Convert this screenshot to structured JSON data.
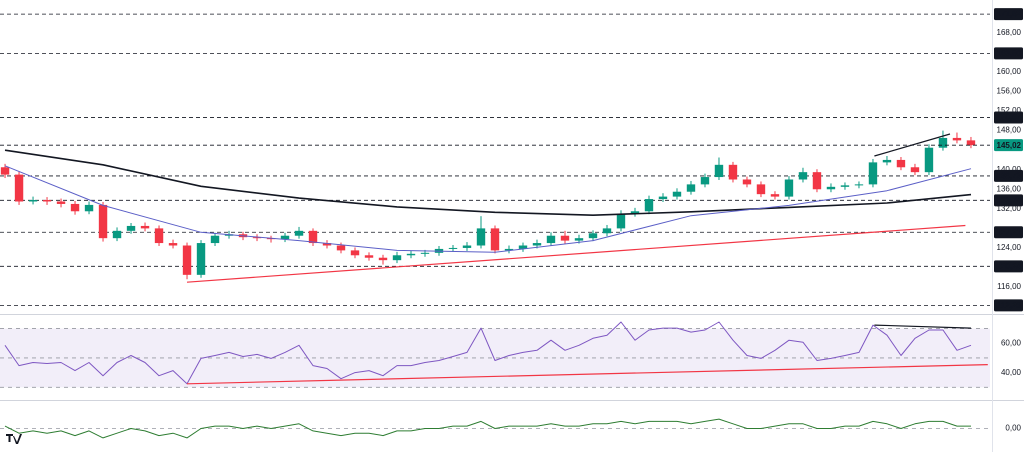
{
  "chart_data": [
    {
      "type": "candlestick",
      "xlim": [
        -0.36,
        70.36
      ],
      "ylim": [
        110.9,
        174.3
      ],
      "yticks": [
        {
          "value": 168,
          "label": "168,00"
        },
        {
          "value": 160,
          "label": "160,00"
        },
        {
          "value": 156,
          "label": "156,00"
        },
        {
          "value": 152,
          "label": "152,00"
        },
        {
          "value": 148,
          "label": "148,00"
        },
        {
          "value": 140,
          "label": "140,00"
        },
        {
          "value": 136,
          "label": "136,00"
        },
        {
          "value": 132,
          "label": "132,00"
        },
        {
          "value": 124,
          "label": "124,00"
        },
        {
          "value": 116,
          "label": "116,00"
        }
      ],
      "levels": [
        {
          "value": 171.82,
          "label": "171,82"
        },
        {
          "value": 163.8,
          "label": "163,80"
        },
        {
          "value": 150.67,
          "label": "150,67"
        },
        {
          "value": 138.73,
          "label": "138,73"
        },
        {
          "value": 133.74,
          "label": "133,74"
        },
        {
          "value": 127.21,
          "label": "127,21"
        },
        {
          "value": 120.24,
          "label": "120,24"
        },
        {
          "value": 112.26,
          "label": "112,26"
        }
      ],
      "level_color": "#131722",
      "last_price": {
        "value": 145.02,
        "label": "145,02"
      },
      "last_price_color": "#089981",
      "up_color": "#089981",
      "down_color": "#f23645",
      "open": [
        140.5,
        139.0,
        133.5,
        133.8,
        133.5,
        133.0,
        131.5,
        132.8,
        126.0,
        127.5,
        128.5,
        128.0,
        125.0,
        124.5,
        118.5,
        125.0,
        126.5,
        126.8,
        126.2,
        126.0,
        125.8,
        126.5,
        127.5,
        125.0,
        124.5,
        123.5,
        122.5,
        122.0,
        121.5,
        122.5,
        122.8,
        123.0,
        123.8,
        124.0,
        124.5,
        128.0,
        123.5,
        123.8,
        124.5,
        125.0,
        126.5,
        125.5,
        126.0,
        127.0,
        128.0,
        131.0,
        131.5,
        134.0,
        134.5,
        135.5,
        137.0,
        138.5,
        141.0,
        138.0,
        137.0,
        135.0,
        134.5,
        138.0,
        139.5,
        136.0,
        136.5,
        136.8,
        137.0,
        141.5,
        142.0,
        140.5,
        139.5,
        144.5,
        146.5,
        146.0
      ],
      "high": [
        141.2,
        139.6,
        134.5,
        134.4,
        134.1,
        133.6,
        133.5,
        133.4,
        128.2,
        129.1,
        129.2,
        128.6,
        125.7,
        125.1,
        125.6,
        127.1,
        127.5,
        127.3,
        126.8,
        126.5,
        127.1,
        128.3,
        128.0,
        125.6,
        125.1,
        124.1,
        123.1,
        122.6,
        123.2,
        123.4,
        123.6,
        124.4,
        124.6,
        125.2,
        130.5,
        128.6,
        124.5,
        125.1,
        125.7,
        127.2,
        127.5,
        126.7,
        127.6,
        128.7,
        131.7,
        132.2,
        134.7,
        135.2,
        136.2,
        137.7,
        139.2,
        142.5,
        141.6,
        138.6,
        137.6,
        135.6,
        138.7,
        140.4,
        140.1,
        137.2,
        137.4,
        137.6,
        142.2,
        142.8,
        142.6,
        141.2,
        145.2,
        148.0,
        147.6,
        146.7
      ],
      "low": [
        138.3,
        132.8,
        132.9,
        132.8,
        132.3,
        130.8,
        130.9,
        125.3,
        125.4,
        126.9,
        127.4,
        124.4,
        123.9,
        117.6,
        117.9,
        124.4,
        125.9,
        125.6,
        125.4,
        125.1,
        125.2,
        125.9,
        124.4,
        123.9,
        122.9,
        121.9,
        121.4,
        120.6,
        120.9,
        121.9,
        122.2,
        122.4,
        123.2,
        123.4,
        123.9,
        122.9,
        122.9,
        123.2,
        123.9,
        124.4,
        124.9,
        124.9,
        125.4,
        126.4,
        127.4,
        130.4,
        130.9,
        133.4,
        133.9,
        134.9,
        136.4,
        137.9,
        137.4,
        136.4,
        134.4,
        133.9,
        133.9,
        137.4,
        135.4,
        135.4,
        135.9,
        136.2,
        136.4,
        140.9,
        139.9,
        138.9,
        138.9,
        143.9,
        145.4,
        144.4
      ],
      "close": [
        139.0,
        133.5,
        133.8,
        133.5,
        133.0,
        131.5,
        132.8,
        126.0,
        127.5,
        128.5,
        128.0,
        125.0,
        124.5,
        118.5,
        125.0,
        126.5,
        126.8,
        126.2,
        126.0,
        125.8,
        126.5,
        127.5,
        125.0,
        124.5,
        123.5,
        122.5,
        122.0,
        121.5,
        122.5,
        122.8,
        123.0,
        123.8,
        124.0,
        124.5,
        128.0,
        123.5,
        123.8,
        124.5,
        125.0,
        126.5,
        125.5,
        126.0,
        127.0,
        128.0,
        131.0,
        131.5,
        134.0,
        134.5,
        135.5,
        137.0,
        138.5,
        141.0,
        138.0,
        137.0,
        135.0,
        134.5,
        138.0,
        139.5,
        136.0,
        136.5,
        136.8,
        137.0,
        141.5,
        142.0,
        140.5,
        139.5,
        144.5,
        146.5,
        146.0,
        145.02
      ],
      "series": [
        {
          "color": "#131722",
          "width": 1.6,
          "x": [
            0,
            7,
            14,
            21,
            28,
            35,
            42,
            49,
            56,
            63,
            69
          ],
          "values": [
            144.0,
            141.0,
            136.6,
            134.2,
            132.4,
            131.3,
            130.7,
            131.4,
            132.3,
            133.2,
            134.9
          ]
        },
        {
          "color": "#5b5fc7",
          "width": 1,
          "x": [
            0,
            7,
            14,
            21,
            28,
            35,
            42,
            49,
            56,
            63,
            69
          ],
          "values": [
            140.8,
            132.7,
            127.2,
            125.5,
            123.5,
            123.1,
            125.5,
            130.6,
            132.7,
            135.7,
            140.2
          ]
        },
        {
          "color": "#f23645",
          "width": 1.2,
          "x": [
            13,
            68.6
          ],
          "values": [
            117.0,
            128.6
          ]
        },
        {
          "color": "#131722",
          "width": 1.2,
          "x": [
            62.1,
            67.5
          ],
          "values": [
            142.8,
            147.3
          ]
        }
      ]
    },
    {
      "type": "line",
      "xlim": [
        -0.36,
        70.36
      ],
      "ylim": [
        24.1,
        77.2
      ],
      "yticks": [
        {
          "value": 60,
          "label": "60,00"
        },
        {
          "value": 40,
          "label": "40,00"
        }
      ],
      "band": [
        30,
        70
      ],
      "band_color": "#7e57c2",
      "hlines": [
        70,
        50,
        30
      ],
      "series": [
        {
          "color": "#7e57c2",
          "width": 1,
          "values": [
            58.6,
            44.8,
            46.9,
            46.2,
            46.9,
            41.4,
            46.9,
            37.9,
            46.9,
            51.7,
            46.9,
            37.9,
            41.4,
            32.4,
            49.7,
            51.7,
            53.8,
            51.0,
            52.4,
            49.7,
            53.8,
            58.6,
            44.8,
            42.8,
            35.9,
            40.0,
            41.4,
            37.9,
            44.8,
            44.8,
            46.9,
            48.3,
            51.0,
            53.8,
            70.3,
            48.3,
            51.7,
            53.8,
            55.2,
            62.1,
            55.2,
            58.6,
            63.4,
            65.5,
            74.5,
            62.1,
            69.0,
            70.3,
            70.3,
            67.6,
            69.0,
            74.5,
            62.1,
            51.7,
            49.7,
            55.2,
            62.1,
            60.7,
            48.3,
            49.7,
            51.7,
            53.8,
            72.4,
            65.5,
            51.7,
            63.4,
            69.0,
            69.0,
            55.2,
            58.6
          ]
        },
        {
          "color": "#f23645",
          "width": 1.2,
          "x": [
            13,
            70.2
          ],
          "values": [
            32.4,
            45.5
          ]
        },
        {
          "color": "#131722",
          "width": 1.2,
          "x": [
            62.1,
            69
          ],
          "values": [
            72.4,
            70.3
          ]
        }
      ]
    },
    {
      "type": "line",
      "xlim": [
        -0.36,
        70.36
      ],
      "ylim": [
        -1,
        1
      ],
      "yticks": [
        {
          "value": 0,
          "label": "0,00"
        }
      ],
      "hlines": [
        0
      ],
      "series": [
        {
          "color": "#2e7d32",
          "width": 1,
          "values": [
            0.1,
            -0.2,
            -0.1,
            -0.2,
            -0.1,
            -0.3,
            -0.1,
            -0.4,
            -0.2,
            0,
            -0.1,
            -0.3,
            -0.2,
            -0.4,
            0,
            0.1,
            0.1,
            0,
            0.1,
            0,
            0.1,
            0.2,
            -0.1,
            -0.2,
            -0.3,
            -0.2,
            -0.2,
            -0.3,
            -0.1,
            -0.1,
            0,
            0,
            0.1,
            0.1,
            0.3,
            0,
            0.1,
            0.1,
            0.1,
            0.2,
            0.1,
            0.1,
            0.2,
            0.2,
            0.3,
            0.2,
            0.3,
            0.3,
            0.3,
            0.2,
            0.3,
            0.4,
            0.2,
            0,
            0,
            0.1,
            0.2,
            0.2,
            0,
            0,
            0.1,
            0.1,
            0.3,
            0.2,
            0,
            0.2,
            0.3,
            0.3,
            0.1,
            0.1
          ]
        }
      ]
    }
  ]
}
